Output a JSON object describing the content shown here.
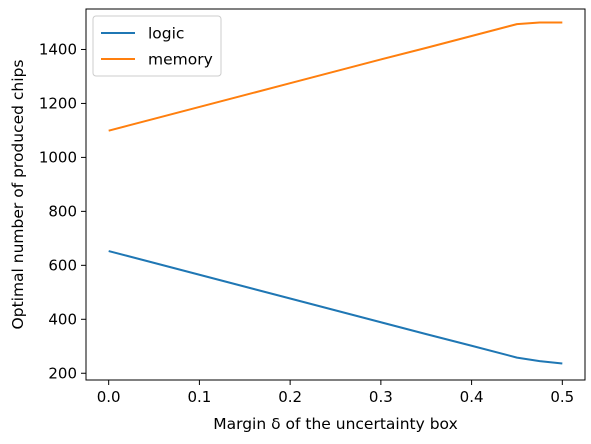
{
  "chart_data": {
    "type": "line",
    "title": "",
    "xlabel": "Margin δ of the uncertainty box",
    "ylabel": "Optimal number of produced chips",
    "xlim": [
      -0.025,
      0.525
    ],
    "ylim": [
      175,
      1550
    ],
    "xticks": [
      0.0,
      0.1,
      0.2,
      0.3,
      0.4,
      0.5
    ],
    "xtick_labels": [
      "0.0",
      "0.1",
      "0.2",
      "0.3",
      "0.4",
      "0.5"
    ],
    "yticks": [
      200,
      400,
      600,
      800,
      1000,
      1200,
      1400
    ],
    "ytick_labels": [
      "200",
      "400",
      "600",
      "800",
      "1000",
      "1200",
      "1400"
    ],
    "grid": false,
    "legend_position": "upper-left",
    "series": [
      {
        "name": "logic",
        "color": "#1f77b4",
        "x": [
          0.0,
          0.05,
          0.1,
          0.15,
          0.2,
          0.25,
          0.3,
          0.35,
          0.4,
          0.45,
          0.475,
          0.5
        ],
        "y": [
          653,
          609,
          565,
          521,
          477,
          433,
          389,
          345,
          302,
          258,
          245,
          236
        ]
      },
      {
        "name": "memory",
        "color": "#ff7f0e",
        "x": [
          0.0,
          0.05,
          0.1,
          0.15,
          0.2,
          0.25,
          0.3,
          0.35,
          0.4,
          0.45,
          0.475,
          0.5
        ],
        "y": [
          1099,
          1143,
          1187,
          1231,
          1275,
          1319,
          1363,
          1406,
          1450,
          1494,
          1500,
          1500
        ]
      }
    ]
  }
}
